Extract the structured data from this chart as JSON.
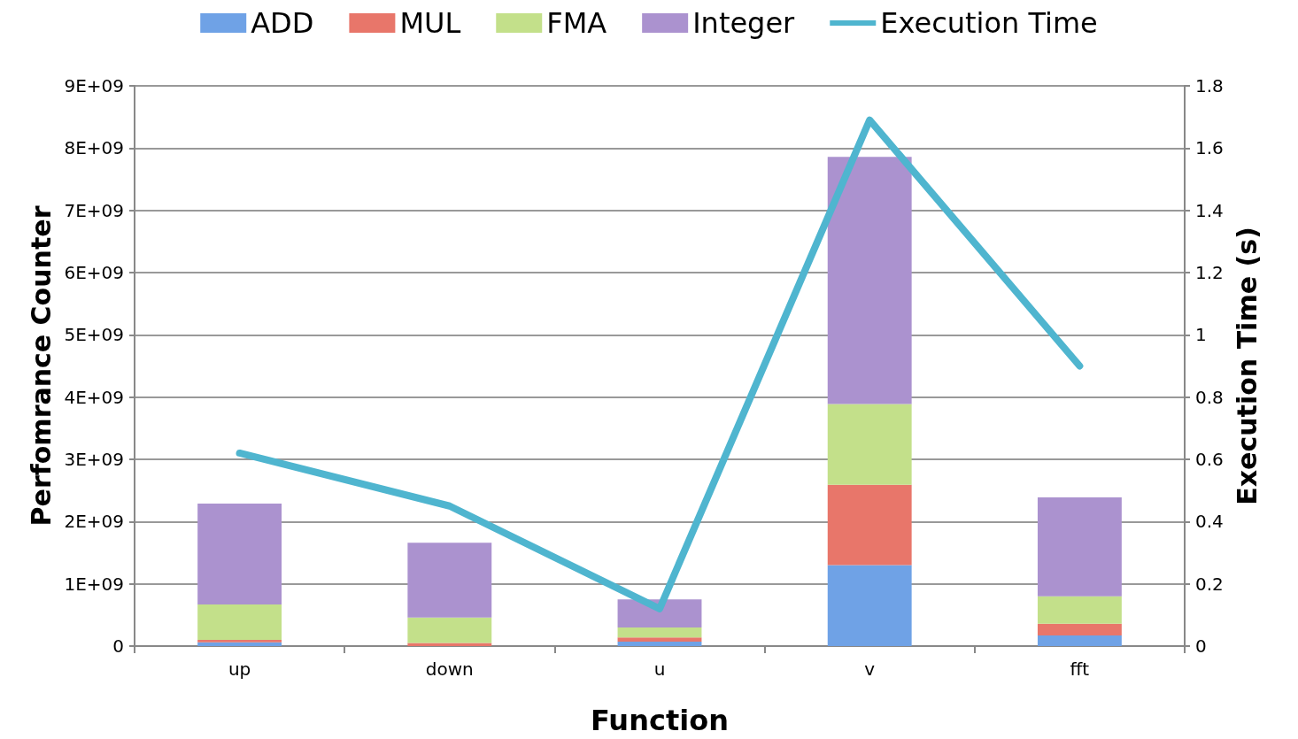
{
  "chart_data": {
    "type": "bar",
    "stacked": true,
    "xlabel": "Function",
    "ylabel": "Perfomrance Counter",
    "y2label": "Execution Time (s)",
    "categories": [
      "up",
      "down",
      "u",
      "v",
      "fft"
    ],
    "series": [
      {
        "name": "ADD",
        "color": "#6fa2e6",
        "values": [
          60000000,
          0,
          70000000,
          1300000000,
          170000000
        ]
      },
      {
        "name": "MUL",
        "color": "#e8766a",
        "values": [
          40000000,
          50000000,
          70000000,
          1290000000,
          190000000
        ]
      },
      {
        "name": "FMA",
        "color": "#c3e08a",
        "values": [
          570000000,
          410000000,
          160000000,
          1300000000,
          440000000
        ]
      },
      {
        "name": "Integer",
        "color": "#ab92cf",
        "values": [
          1620000000,
          1200000000,
          450000000,
          3970000000,
          1590000000
        ]
      },
      {
        "name": "Execution Time",
        "type": "line",
        "axis": "y2",
        "color": "#4fb5cf",
        "values": [
          0.62,
          0.45,
          0.12,
          1.69,
          0.9
        ]
      }
    ],
    "ylim": [
      0,
      9000000000
    ],
    "yticks": [
      0,
      {
        "value": 1000000000,
        "label": "1E+09"
      },
      {
        "value": 2000000000,
        "label": "2E+09"
      },
      {
        "value": 3000000000,
        "label": "3E+09"
      },
      {
        "value": 4000000000,
        "label": "4E+09"
      },
      {
        "value": 5000000000,
        "label": "5E+09"
      },
      {
        "value": 6000000000,
        "label": "6E+09"
      },
      {
        "value": 7000000000,
        "label": "7E+09"
      },
      {
        "value": 8000000000,
        "label": "8E+09"
      },
      {
        "value": 9000000000,
        "label": "9E+09"
      }
    ],
    "y2lim": [
      0,
      1.8
    ],
    "y2ticks": [
      0,
      0.2,
      0.4,
      0.6,
      0.8,
      1,
      1.2,
      1.4,
      1.6,
      1.8
    ],
    "grid": "y",
    "legend": "top",
    "marker": "none",
    "line_style": "solid"
  }
}
